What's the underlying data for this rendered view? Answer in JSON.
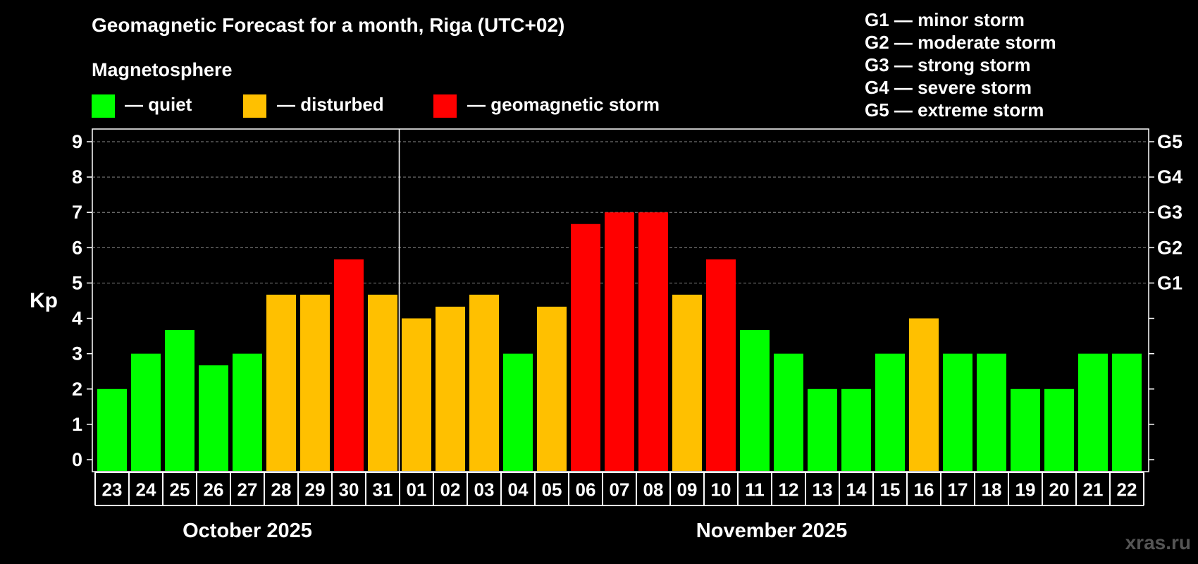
{
  "title": "Geomagnetic Forecast for a month, Riga (UTC+02)",
  "legend": {
    "heading": "Magnetosphere",
    "items": [
      {
        "label": "— quiet",
        "color": "#00ff00"
      },
      {
        "label": "— disturbed",
        "color": "#ffc000"
      },
      {
        "label": "— geomagnetic storm",
        "color": "#ff0000"
      }
    ]
  },
  "storm_scale": [
    "G1 — minor storm",
    "G2 — moderate storm",
    "G3 — strong storm",
    "G4 — severe storm",
    "G5 — extreme storm"
  ],
  "watermark": "xras.ru",
  "chart_data": {
    "type": "bar",
    "title": "Geomagnetic Forecast for a month, Riga (UTC+02)",
    "ylabel": "Kp",
    "ylim": [
      0,
      9
    ],
    "yticks": [
      "0",
      "1",
      "2",
      "3",
      "4",
      "5",
      "6",
      "7",
      "8",
      "9"
    ],
    "right_axis": [
      {
        "kp": 5,
        "label": "G1"
      },
      {
        "kp": 6,
        "label": "G2"
      },
      {
        "kp": 7,
        "label": "G3"
      },
      {
        "kp": 8,
        "label": "G4"
      },
      {
        "kp": 9,
        "label": "G5"
      }
    ],
    "months": [
      {
        "label": "October 2025",
        "start": 0,
        "count": 9
      },
      {
        "label": "November 2025",
        "start": 9,
        "count": 22
      }
    ],
    "categories": [
      "23",
      "24",
      "25",
      "26",
      "27",
      "28",
      "29",
      "30",
      "31",
      "01",
      "02",
      "03",
      "04",
      "05",
      "06",
      "07",
      "08",
      "09",
      "10",
      "11",
      "12",
      "13",
      "14",
      "15",
      "16",
      "17",
      "18",
      "19",
      "20",
      "21",
      "22"
    ],
    "values": [
      2,
      3,
      3.67,
      2.67,
      3,
      4.67,
      4.67,
      5.67,
      4.67,
      4,
      4.33,
      4.67,
      3,
      4.33,
      6.67,
      7,
      7,
      4.67,
      5.67,
      3.67,
      3,
      2,
      2,
      3,
      4,
      3,
      3,
      2,
      2,
      3,
      3
    ],
    "levels": [
      "quiet",
      "quiet",
      "quiet",
      "quiet",
      "quiet",
      "disturbed",
      "disturbed",
      "storm",
      "disturbed",
      "disturbed",
      "disturbed",
      "disturbed",
      "quiet",
      "disturbed",
      "storm",
      "storm",
      "storm",
      "disturbed",
      "storm",
      "quiet",
      "quiet",
      "quiet",
      "quiet",
      "quiet",
      "disturbed",
      "quiet",
      "quiet",
      "quiet",
      "quiet",
      "quiet",
      "quiet"
    ],
    "colors": {
      "quiet": "#00ff00",
      "disturbed": "#ffc000",
      "storm": "#ff0000"
    }
  }
}
